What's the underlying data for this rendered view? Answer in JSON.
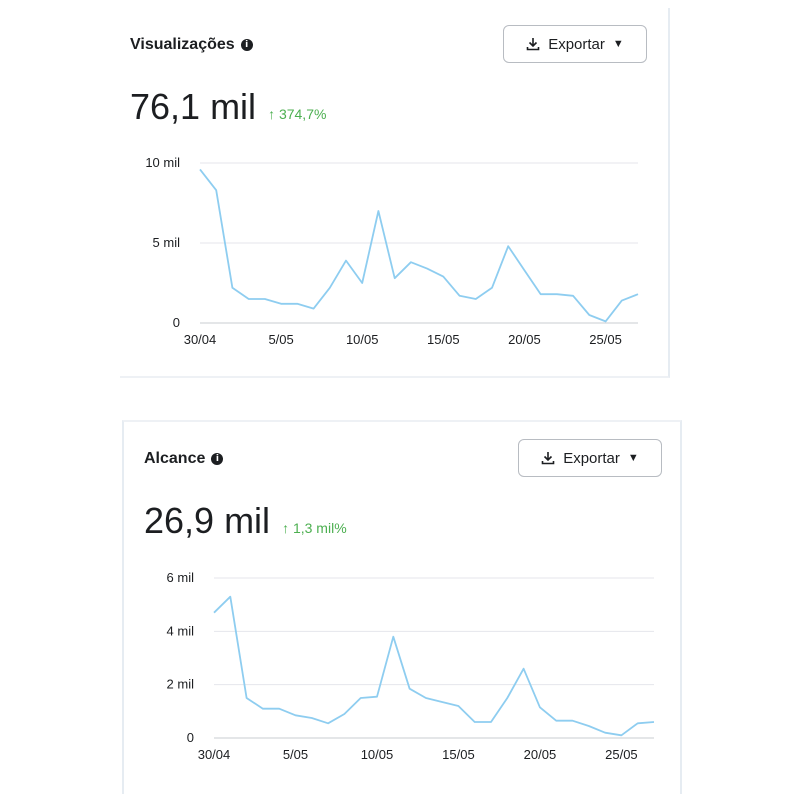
{
  "cards": [
    {
      "title": "Visualizações",
      "info_icon": "i",
      "export_label": "Exportar",
      "metric_value": "76,1 mil",
      "change_arrow": "↑",
      "change_text": "374,7%",
      "accent_color": "#4caf50"
    },
    {
      "title": "Alcance",
      "info_icon": "i",
      "export_label": "Exportar",
      "metric_value": "26,9 mil",
      "change_arrow": "↑",
      "change_text": "1,3 mil%",
      "accent_color": "#4caf50"
    }
  ],
  "chart_data": [
    {
      "type": "line",
      "title": "Visualizações",
      "x_labels": [
        "30/04",
        "5/05",
        "10/05",
        "15/05",
        "20/05",
        "25/05"
      ],
      "x_label_index": [
        0,
        5,
        10,
        15,
        20,
        25
      ],
      "y_tick_values": [
        0,
        5000,
        10000
      ],
      "y_tick_labels": [
        "0",
        "5 mil",
        "10 mil"
      ],
      "ylim": [
        0,
        10000
      ],
      "grid": true,
      "line_color": "#8ecdf0",
      "series": [
        {
          "name": "Visualizações",
          "values": [
            9600,
            8300,
            2200,
            1500,
            1500,
            1200,
            1200,
            900,
            2200,
            3900,
            2500,
            7000,
            2800,
            3800,
            3400,
            2900,
            1700,
            1500,
            2200,
            4800,
            3300,
            1800,
            1800,
            1700,
            500,
            100,
            1400,
            1800
          ]
        }
      ]
    },
    {
      "type": "line",
      "title": "Alcance",
      "x_labels": [
        "30/04",
        "5/05",
        "10/05",
        "15/05",
        "20/05",
        "25/05"
      ],
      "x_label_index": [
        0,
        5,
        10,
        15,
        20,
        25
      ],
      "y_tick_values": [
        0,
        2000,
        4000,
        6000
      ],
      "y_tick_labels": [
        "0",
        "2 mil",
        "4 mil",
        "6 mil"
      ],
      "ylim": [
        0,
        6000
      ],
      "grid": true,
      "line_color": "#8ecdf0",
      "series": [
        {
          "name": "Alcance",
          "values": [
            4700,
            5300,
            1500,
            1100,
            1100,
            850,
            750,
            550,
            900,
            1500,
            1550,
            3800,
            1850,
            1500,
            1350,
            1200,
            600,
            600,
            1500,
            2600,
            1150,
            650,
            650,
            450,
            200,
            100,
            550,
            600
          ]
        }
      ]
    }
  ]
}
